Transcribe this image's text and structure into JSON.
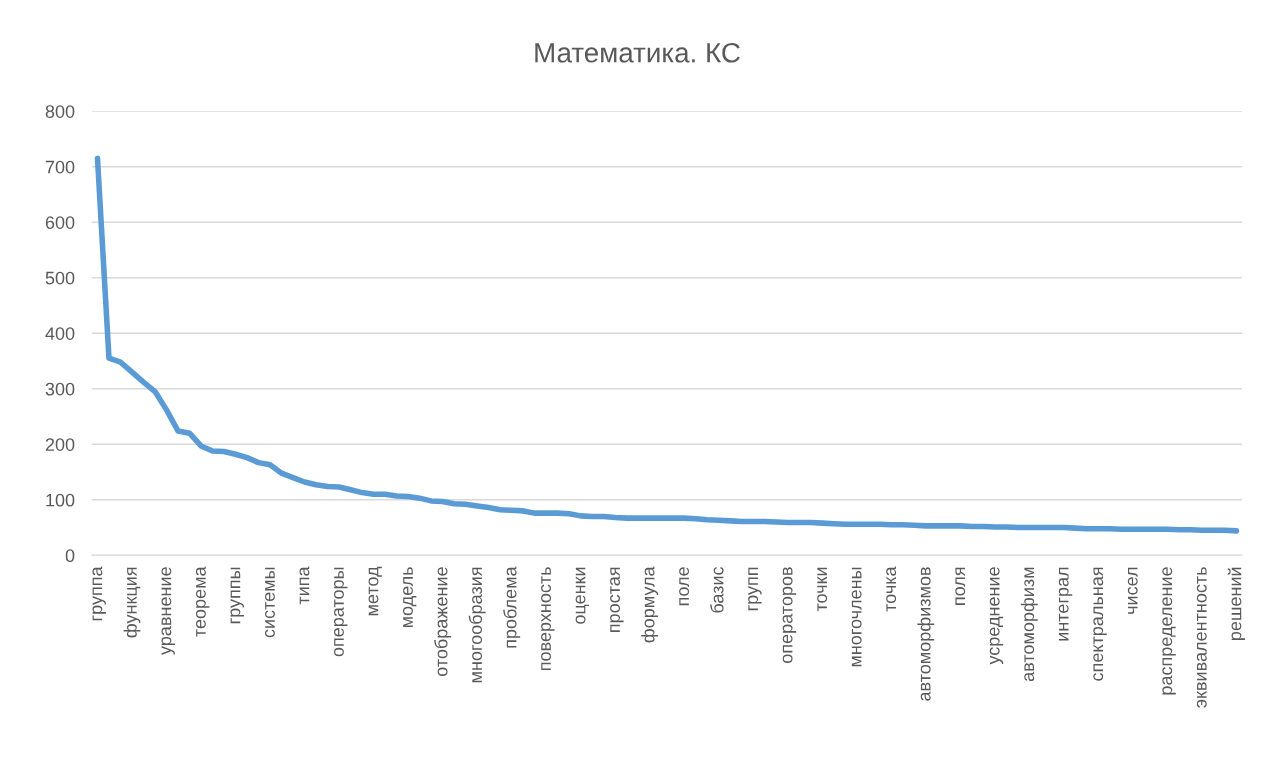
{
  "chart_data": {
    "type": "line",
    "title": "Математика. КС",
    "categories": [
      "группа",
      null,
      null,
      "функция",
      null,
      null,
      "уравнение",
      null,
      null,
      "теорема",
      null,
      null,
      "группы",
      null,
      null,
      "системы",
      null,
      null,
      "типа",
      null,
      null,
      "операторы",
      null,
      null,
      "метод",
      null,
      null,
      "модель",
      null,
      null,
      "отображение",
      null,
      null,
      "многообразия",
      null,
      null,
      "проблема",
      null,
      null,
      "поверхность",
      null,
      null,
      "оценки",
      null,
      null,
      "простая",
      null,
      null,
      "формула",
      null,
      null,
      "поле",
      null,
      null,
      "базис",
      null,
      null,
      "групп",
      null,
      null,
      "операторов",
      null,
      null,
      "точки",
      null,
      null,
      "многочлены",
      null,
      null,
      "точка",
      null,
      null,
      "автоморфизмов",
      null,
      null,
      "поля",
      null,
      null,
      "усреднение",
      null,
      null,
      "автоморфизм",
      null,
      null,
      "интеграл",
      null,
      null,
      "спектральная",
      null,
      null,
      "чисел",
      null,
      null,
      "распределение",
      null,
      null,
      "эквивалентность",
      null,
      null,
      "решений"
    ],
    "series": [
      {
        "color": "#5b9bd5",
        "values": [
          715,
          355,
          348,
          330,
          312,
          295,
          262,
          224,
          220,
          197,
          188,
          187,
          182,
          176,
          167,
          163,
          148,
          140,
          132,
          127,
          124,
          123,
          118,
          113,
          110,
          110,
          107,
          106,
          103,
          98,
          97,
          93,
          92,
          89,
          86,
          82,
          81,
          80,
          76,
          76,
          76,
          75,
          71,
          70,
          70,
          68,
          67,
          67,
          67,
          67,
          67,
          67,
          66,
          64,
          63,
          62,
          61,
          61,
          61,
          60,
          59,
          59,
          59,
          58,
          57,
          56,
          56,
          56,
          56,
          55,
          55,
          54,
          53,
          53,
          53,
          53,
          52,
          52,
          51,
          51,
          50,
          50,
          50,
          50,
          50,
          49,
          48,
          48,
          48,
          47,
          47,
          47,
          47,
          47,
          46,
          46,
          45,
          45,
          45,
          44
        ]
      }
    ],
    "ylim": [
      0,
      800
    ],
    "yticks": [
      0,
      100,
      200,
      300,
      400,
      500,
      600,
      700,
      800
    ],
    "grid": "y",
    "marker": "none"
  }
}
